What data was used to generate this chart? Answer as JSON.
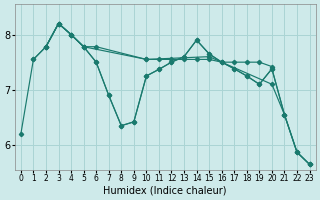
{
  "bg_color": "#ceeaea",
  "line_color": "#1a7a6e",
  "grid_color": "#aad4d4",
  "xlabel": "Humidex (Indice chaleur)",
  "xlabel_fontsize": 7,
  "yticks": [
    6,
    7,
    8
  ],
  "xticks": [
    0,
    1,
    2,
    3,
    4,
    5,
    6,
    7,
    8,
    9,
    10,
    11,
    12,
    13,
    14,
    15,
    16,
    17,
    18,
    19,
    20,
    21,
    22,
    23
  ],
  "xlim": [
    -0.5,
    23.5
  ],
  "ylim": [
    5.55,
    8.55
  ],
  "lines": [
    {
      "x": [
        0,
        1,
        2,
        3,
        4,
        5,
        10,
        15,
        20,
        21,
        22,
        23
      ],
      "y": [
        6.2,
        7.55,
        7.78,
        8.2,
        8.0,
        7.78,
        7.55,
        7.6,
        7.1,
        6.55,
        5.87,
        5.65
      ]
    },
    {
      "x": [
        2,
        3,
        4,
        5,
        6,
        10,
        11,
        12,
        13,
        14,
        15,
        16,
        17,
        18,
        19,
        20
      ],
      "y": [
        7.78,
        8.2,
        8.0,
        7.78,
        7.78,
        7.55,
        7.55,
        7.55,
        7.55,
        7.55,
        7.55,
        7.5,
        7.5,
        7.5,
        7.5,
        7.42
      ]
    },
    {
      "x": [
        1,
        2,
        3,
        4,
        5,
        6,
        7,
        8,
        9,
        10,
        11,
        12,
        13,
        14,
        15,
        16,
        17,
        18,
        19,
        20,
        21,
        22,
        23
      ],
      "y": [
        7.55,
        7.78,
        8.2,
        8.0,
        7.78,
        7.5,
        6.9,
        6.35,
        6.42,
        7.25,
        7.37,
        7.5,
        7.6,
        7.9,
        7.65,
        7.5,
        7.38,
        7.25,
        7.1,
        7.38,
        6.55,
        5.87,
        5.65
      ]
    },
    {
      "x": [
        2,
        3,
        4,
        5,
        6,
        7,
        8,
        9,
        10,
        11,
        12,
        13,
        14,
        15,
        16,
        17,
        18,
        19,
        20,
        21,
        22,
        23
      ],
      "y": [
        7.78,
        8.2,
        8.0,
        7.78,
        7.5,
        6.9,
        6.35,
        6.42,
        7.25,
        7.37,
        7.5,
        7.6,
        7.9,
        7.65,
        7.5,
        7.38,
        7.25,
        7.1,
        7.38,
        6.55,
        5.87,
        5.65
      ]
    }
  ]
}
